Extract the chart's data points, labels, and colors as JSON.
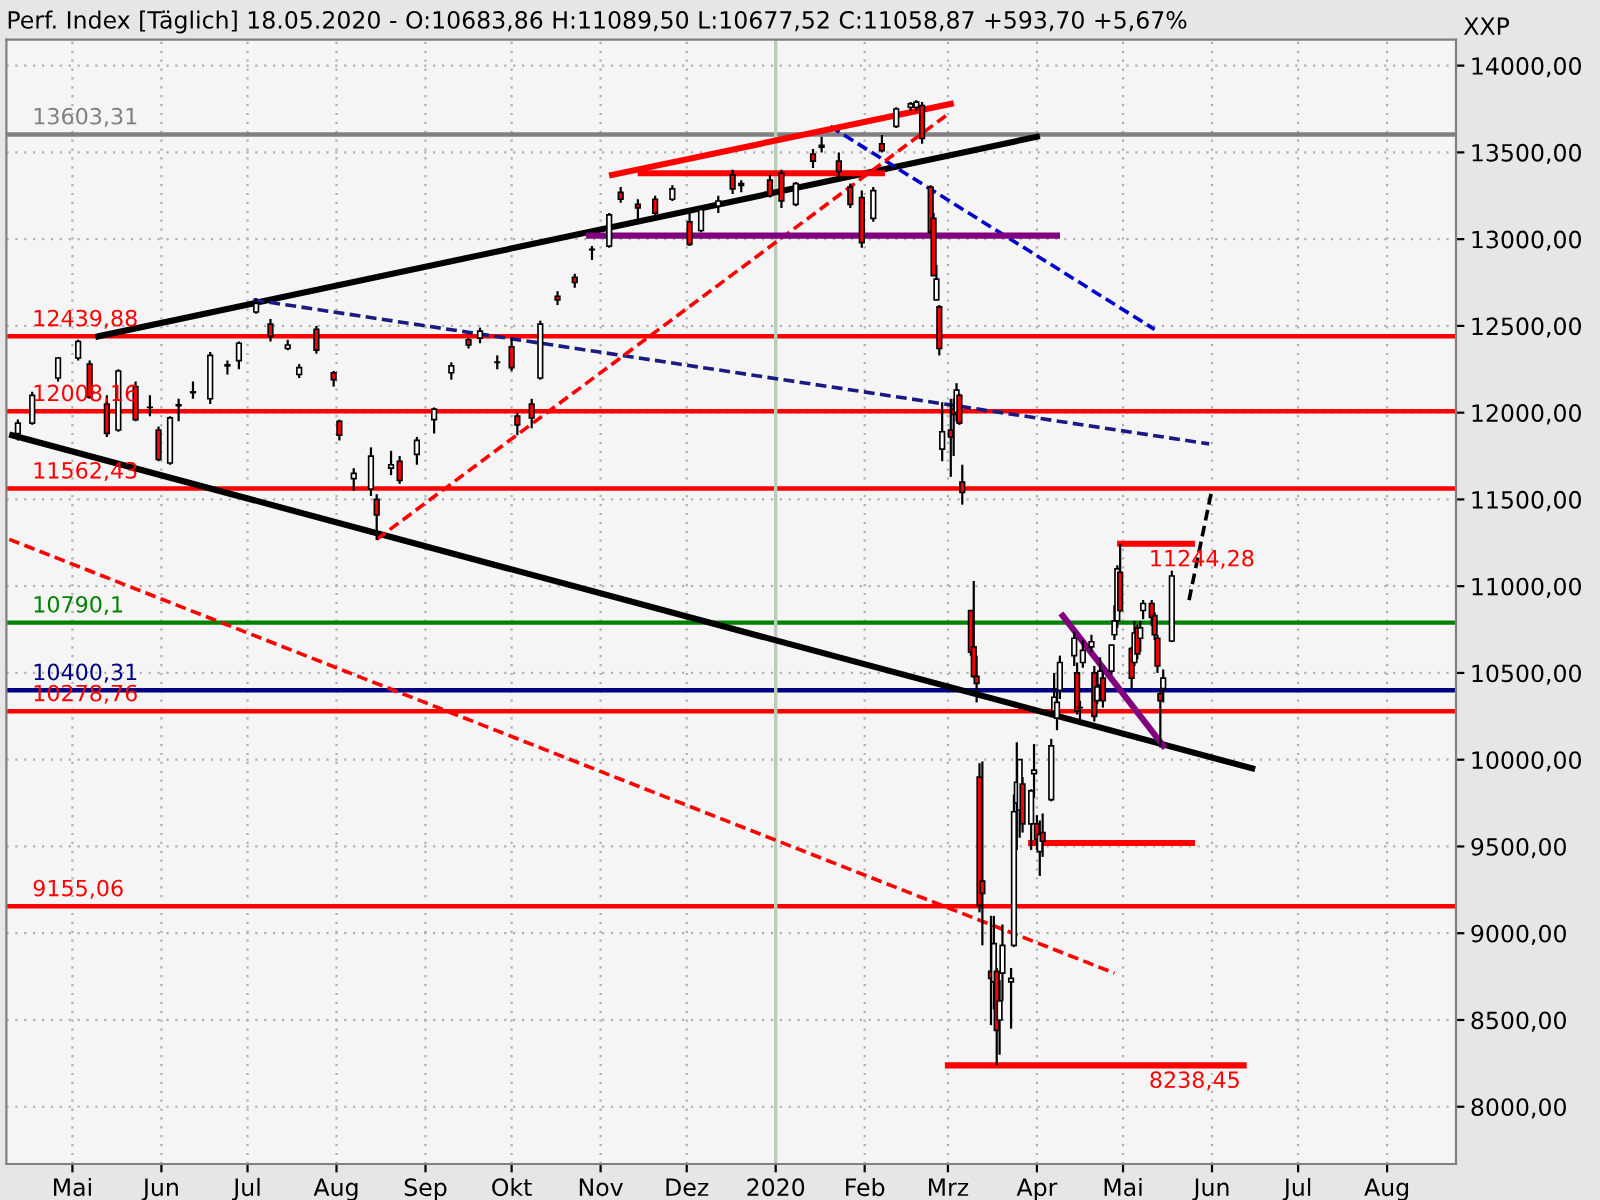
{
  "chart_data": {
    "type": "candlestick",
    "title": "Perf. Index [Täglich] 18.05.2020 - O:10683,86 H:11089,50 L:10677,52 C:11058,87 +593,70 +5,67%",
    "ylabel": "XXP",
    "x": [
      "2019-04-12",
      "2019-04-17",
      "2019-04-26",
      "2019-05-03",
      "2019-05-07",
      "2019-05-13",
      "2019-05-17",
      "2019-05-23",
      "2019-05-28",
      "2019-05-31",
      "2019-06-04",
      "2019-06-07",
      "2019-06-12",
      "2019-06-18",
      "2019-06-24",
      "2019-06-28",
      "2019-07-04",
      "2019-07-09",
      "2019-07-15",
      "2019-07-19",
      "2019-07-25",
      "2019-07-31",
      "2019-08-02",
      "2019-08-07",
      "2019-08-13",
      "2019-08-15",
      "2019-08-20",
      "2019-08-23",
      "2019-08-29",
      "2019-09-04",
      "2019-09-10",
      "2019-09-16",
      "2019-09-20",
      "2019-09-26",
      "2019-10-01",
      "2019-10-03",
      "2019-10-08",
      "2019-10-11",
      "2019-10-17",
      "2019-10-23",
      "2019-10-29",
      "2019-11-04",
      "2019-11-08",
      "2019-11-14",
      "2019-11-20",
      "2019-11-26",
      "2019-12-02",
      "2019-12-06",
      "2019-12-12",
      "2019-12-17",
      "2019-12-20",
      "2019-12-30",
      "2020-01-03",
      "2020-01-08",
      "2020-01-14",
      "2020-01-17",
      "2020-01-23",
      "2020-01-27",
      "2020-01-31",
      "2020-02-04",
      "2020-02-07",
      "2020-02-12",
      "2020-02-17",
      "2020-02-19",
      "2020-02-21",
      "2020-02-24",
      "2020-02-25",
      "2020-02-26",
      "2020-02-27",
      "2020-02-28",
      "2020-03-02",
      "2020-03-03",
      "2020-03-04",
      "2020-03-05",
      "2020-03-06",
      "2020-03-09",
      "2020-03-10",
      "2020-03-11",
      "2020-03-12",
      "2020-03-13",
      "2020-03-16",
      "2020-03-17",
      "2020-03-18",
      "2020-03-19",
      "2020-03-20",
      "2020-03-23",
      "2020-03-24",
      "2020-03-25",
      "2020-03-26",
      "2020-03-27",
      "2020-03-30",
      "2020-03-31",
      "2020-04-01",
      "2020-04-02",
      "2020-04-03",
      "2020-04-06",
      "2020-04-07",
      "2020-04-08",
      "2020-04-09",
      "2020-04-14",
      "2020-04-15",
      "2020-04-16",
      "2020-04-17",
      "2020-04-20",
      "2020-04-21",
      "2020-04-22",
      "2020-04-23",
      "2020-04-24",
      "2020-04-27",
      "2020-04-28",
      "2020-04-29",
      "2020-04-30",
      "2020-05-04",
      "2020-05-05",
      "2020-05-06",
      "2020-05-07",
      "2020-05-08",
      "2020-05-11",
      "2020-05-12",
      "2020-05-13",
      "2020-05-14",
      "2020-05-15",
      "2020-05-18"
    ],
    "ohlc": [
      [
        11880,
        11960,
        11840,
        11940
      ],
      [
        11940,
        12120,
        11930,
        12100
      ],
      [
        12200,
        12320,
        12180,
        12315
      ],
      [
        12315,
        12420,
        12300,
        12410
      ],
      [
        12280,
        12300,
        12080,
        12090
      ],
      [
        12050,
        12100,
        11860,
        11880
      ],
      [
        11900,
        12250,
        11890,
        12240
      ],
      [
        12150,
        12180,
        11950,
        11960
      ],
      [
        12030,
        12100,
        11980,
        12030
      ],
      [
        11900,
        11920,
        11720,
        11730
      ],
      [
        11710,
        11980,
        11700,
        11970
      ],
      [
        12040,
        12080,
        11950,
        12045
      ],
      [
        12120,
        12180,
        12080,
        12115
      ],
      [
        12080,
        12350,
        12050,
        12330
      ],
      [
        12270,
        12300,
        12220,
        12275
      ],
      [
        12300,
        12410,
        12250,
        12400
      ],
      [
        12580,
        12660,
        12570,
        12630
      ],
      [
        12510,
        12540,
        12410,
        12440
      ],
      [
        12370,
        12420,
        12360,
        12390
      ],
      [
        12220,
        12280,
        12200,
        12260
      ],
      [
        12480,
        12500,
        12340,
        12360
      ],
      [
        12230,
        12240,
        12150,
        12190
      ],
      [
        11950,
        11960,
        11840,
        11870
      ],
      [
        11620,
        11680,
        11550,
        11650
      ],
      [
        11560,
        11800,
        11520,
        11750
      ],
      [
        11500,
        11530,
        11266,
        11410
      ],
      [
        11680,
        11780,
        11640,
        11700
      ],
      [
        11720,
        11750,
        11590,
        11610
      ],
      [
        11760,
        11860,
        11700,
        11840
      ],
      [
        11960,
        12030,
        11880,
        12020
      ],
      [
        12230,
        12290,
        12190,
        12270
      ],
      [
        12420,
        12430,
        12370,
        12390
      ],
      [
        12430,
        12490,
        12400,
        12470
      ],
      [
        12290,
        12330,
        12250,
        12290
      ],
      [
        12380,
        12430,
        12240,
        12260
      ],
      [
        11980,
        12000,
        11870,
        11930
      ],
      [
        12050,
        12080,
        11910,
        11970
      ],
      [
        12200,
        12530,
        12190,
        12510
      ],
      [
        12670,
        12700,
        12620,
        12650
      ],
      [
        12780,
        12800,
        12720,
        12750
      ],
      [
        12940,
        12960,
        12880,
        12940
      ],
      [
        12960,
        13150,
        12950,
        13140
      ],
      [
        13270,
        13300,
        13210,
        13230
      ],
      [
        13200,
        13230,
        13100,
        13180
      ],
      [
        13230,
        13250,
        13120,
        13150
      ],
      [
        13230,
        13310,
        13220,
        13290
      ],
      [
        13100,
        13150,
        12960,
        12970
      ],
      [
        13050,
        13180,
        13040,
        13170
      ],
      [
        13190,
        13250,
        13150,
        13220
      ],
      [
        13370,
        13400,
        13260,
        13290
      ],
      [
        13310,
        13340,
        13270,
        13320
      ],
      [
        13340,
        13370,
        13240,
        13250
      ],
      [
        13380,
        13400,
        13180,
        13220
      ],
      [
        13200,
        13330,
        13190,
        13320
      ],
      [
        13490,
        13520,
        13410,
        13450
      ],
      [
        13540,
        13590,
        13500,
        13530
      ],
      [
        13450,
        13500,
        13340,
        13390
      ],
      [
        13300,
        13320,
        13180,
        13200
      ],
      [
        13240,
        13280,
        12950,
        12980
      ],
      [
        13120,
        13300,
        13100,
        13280
      ],
      [
        13550,
        13600,
        13500,
        13510
      ],
      [
        13650,
        13760,
        13640,
        13750
      ],
      [
        13760,
        13790,
        13740,
        13780
      ],
      [
        13760,
        13800,
        13740,
        13790
      ],
      [
        13770,
        13790,
        13550,
        13580
      ],
      [
        13300,
        13310,
        13030,
        13040
      ],
      [
        13120,
        13150,
        12790,
        12790
      ],
      [
        12650,
        12850,
        12650,
        12770
      ],
      [
        12610,
        12620,
        12330,
        12370
      ],
      [
        11790,
        12060,
        11720,
        11890
      ],
      [
        11900,
        12080,
        11630,
        11860
      ],
      [
        12020,
        12080,
        11750,
        11990
      ],
      [
        12000,
        12170,
        11950,
        12130
      ],
      [
        12100,
        12110,
        11930,
        11940
      ],
      [
        11600,
        11700,
        11470,
        11540
      ],
      [
        10860,
        10860,
        10600,
        10620
      ],
      [
        10650,
        11030,
        10470,
        10480
      ],
      [
        10480,
        10600,
        10330,
        10440
      ],
      [
        9900,
        9980,
        9120,
        9160
      ],
      [
        9300,
        9990,
        8930,
        9230
      ],
      [
        8780,
        9100,
        8470,
        8740
      ],
      [
        8720,
        9100,
        8560,
        8940
      ],
      [
        8780,
        8800,
        8240,
        8440
      ],
      [
        8500,
        8730,
        8300,
        8610
      ],
      [
        8770,
        9050,
        8610,
        8930
      ],
      [
        8720,
        8800,
        8450,
        8740
      ],
      [
        8930,
        9800,
        8920,
        9700
      ],
      [
        9750,
        10100,
        9480,
        9870
      ],
      [
        9710,
        10000,
        9550,
        10000
      ],
      [
        9860,
        9900,
        9580,
        9630
      ],
      [
        9630,
        9830,
        9480,
        9820
      ],
      [
        9920,
        10090,
        9780,
        9940
      ],
      [
        9630,
        9680,
        9480,
        9540
      ],
      [
        9470,
        9650,
        9330,
        9570
      ],
      [
        9580,
        9690,
        9440,
        9530
      ],
      [
        9770,
        10120,
        9760,
        10080
      ],
      [
        10280,
        10500,
        10260,
        10360
      ],
      [
        10240,
        10390,
        10170,
        10330
      ],
      [
        10400,
        10600,
        10350,
        10560
      ],
      [
        10600,
        10740,
        10540,
        10700
      ],
      [
        10500,
        10560,
        10260,
        10280
      ],
      [
        10300,
        10340,
        10230,
        10300
      ],
      [
        10560,
        10690,
        10530,
        10630
      ],
      [
        10650,
        10720,
        10620,
        10680
      ],
      [
        10500,
        10540,
        10220,
        10250
      ],
      [
        10340,
        10470,
        10320,
        10420
      ],
      [
        10430,
        10590,
        10400,
        10510
      ],
      [
        10470,
        10500,
        10300,
        10340
      ],
      [
        10510,
        10660,
        10490,
        10660
      ],
      [
        10720,
        10890,
        10690,
        10800
      ],
      [
        10800,
        11120,
        10760,
        11100
      ],
      [
        11080,
        11244,
        10850,
        10860
      ],
      [
        10640,
        10650,
        10410,
        10470
      ],
      [
        10560,
        10800,
        10540,
        10730
      ],
      [
        10760,
        10780,
        10580,
        10610
      ],
      [
        10700,
        10800,
        10620,
        10760
      ],
      [
        10860,
        10920,
        10810,
        10900
      ],
      [
        10900,
        10920,
        10770,
        10820
      ],
      [
        10830,
        10850,
        10690,
        10720
      ],
      [
        10700,
        10720,
        10500,
        10540
      ],
      [
        10380,
        10400,
        10070,
        10340
      ],
      [
        10410,
        10520,
        10330,
        10470
      ],
      [
        10683.86,
        11089.5,
        10677.52,
        11058.87
      ]
    ],
    "series": [
      {
        "type": "line",
        "color": "#000000",
        "line_style": "solid",
        "x": [
          "2019-05-10",
          "2020-04-01"
        ],
        "values": [
          12440,
          13590
        ]
      },
      {
        "type": "line",
        "color": "#000000",
        "line_style": "solid",
        "x": [
          "2019-04-10",
          "2020-06-15"
        ],
        "values": [
          11870,
          9950
        ]
      },
      {
        "type": "line",
        "color": "#1a1a80",
        "line_style": "dashed",
        "x": [
          "2019-07-03",
          "2020-05-31"
        ],
        "values": [
          12650,
          11820
        ]
      },
      {
        "type": "line",
        "color": "#0000cc",
        "line_style": "dashed",
        "x": [
          "2020-01-20",
          "2020-05-12"
        ],
        "values": [
          13650,
          12480
        ]
      },
      {
        "type": "line",
        "color": "#ff0000",
        "line_style": "dashed",
        "x": [
          "2019-04-09",
          "2020-04-28"
        ],
        "values": [
          11270,
          8770
        ]
      },
      {
        "type": "line",
        "color": "#ff0000",
        "line_style": "dashed",
        "x": [
          "2019-08-15",
          "2020-03-01"
        ],
        "values": [
          11270,
          13720
        ]
      },
      {
        "type": "line",
        "color": "#ff0000",
        "line_style": "solid",
        "x": [
          "2019-11-05",
          "2020-03-02"
        ],
        "values": [
          13370,
          13780
        ]
      },
      {
        "type": "line",
        "color": "#ff0000",
        "line_style": "solid",
        "x": [
          "2019-11-15",
          "2020-02-07"
        ],
        "values": [
          13380,
          13380
        ]
      },
      {
        "type": "line",
        "color": "#800080",
        "line_style": "solid",
        "x": [
          "2019-10-28",
          "2020-04-08"
        ],
        "values": [
          13020,
          13020
        ]
      },
      {
        "type": "line",
        "color": "#800080",
        "line_style": "solid",
        "x": [
          "2020-04-10",
          "2020-05-15"
        ],
        "values": [
          10830,
          10080
        ]
      },
      {
        "type": "line",
        "color": "#ff0000",
        "line_style": "solid",
        "x": [
          "2020-04-30",
          "2020-05-25"
        ],
        "values": [
          11244.28,
          11244.28
        ]
      },
      {
        "type": "line",
        "color": "#ff0000",
        "line_style": "solid",
        "x": [
          "2020-03-30",
          "2020-05-25"
        ],
        "values": [
          9520,
          9520
        ]
      },
      {
        "type": "line",
        "color": "#ff0000",
        "line_style": "solid",
        "x": [
          "2020-03-01",
          "2020-06-12"
        ],
        "values": [
          8238.45,
          8238.45
        ]
      },
      {
        "type": "line",
        "color": "#000000",
        "line_style": "dashed",
        "x": [
          "2020-05-24",
          "2020-06-01"
        ],
        "values": [
          10920,
          11560
        ]
      }
    ],
    "ref_lines": [
      {
        "axis": "y",
        "value": 13603.31,
        "label": "13603,31",
        "color": "#808080"
      },
      {
        "axis": "y",
        "value": 12439.88,
        "label": "12439,88",
        "color": "#ff0000"
      },
      {
        "axis": "y",
        "value": 12008.16,
        "label": "12008,16",
        "color": "#ff0000"
      },
      {
        "axis": "y",
        "value": 11562.43,
        "label": "11562,43",
        "color": "#ff0000"
      },
      {
        "axis": "y",
        "value": 10790.1,
        "label": "10790,1",
        "color": "#008000"
      },
      {
        "axis": "y",
        "value": 10400.31,
        "label": "10400,31",
        "color": "#000080"
      },
      {
        "axis": "y",
        "value": 10278.76,
        "label": "10278,76",
        "color": "#ff0000"
      },
      {
        "axis": "y",
        "value": 9155.06,
        "label": "9155,06",
        "color": "#ff0000"
      },
      {
        "axis": "x",
        "value": "2020-01-01",
        "color": "#b8ccb8"
      }
    ],
    "annotations": [
      {
        "text": "11244,28",
        "x": "2020-05-10",
        "y": 11244.28
      },
      {
        "text": "8238,45",
        "x": "2020-05-10",
        "y": 8238.45
      }
    ],
    "xlim": [
      "2019-04-08",
      "2020-08-25"
    ],
    "xticks": [
      {
        "value": "2019-05-01",
        "label": "Mai"
      },
      {
        "value": "2019-06-01",
        "label": "Jun"
      },
      {
        "value": "2019-07-01",
        "label": "Jul"
      },
      {
        "value": "2019-08-01",
        "label": "Aug"
      },
      {
        "value": "2019-09-01",
        "label": "Sep"
      },
      {
        "value": "2019-10-01",
        "label": "Okt"
      },
      {
        "value": "2019-11-01",
        "label": "Nov"
      },
      {
        "value": "2019-12-01",
        "label": "Dez"
      },
      {
        "value": "2020-01-01",
        "label": "2020"
      },
      {
        "value": "2020-02-01",
        "label": "Feb"
      },
      {
        "value": "2020-03-01",
        "label": "Mrz"
      },
      {
        "value": "2020-04-01",
        "label": "Apr"
      },
      {
        "value": "2020-05-01",
        "label": "Mai"
      },
      {
        "value": "2020-06-01",
        "label": "Jun"
      },
      {
        "value": "2020-07-01",
        "label": "Jul"
      },
      {
        "value": "2020-08-01",
        "label": "Aug"
      }
    ],
    "ylim": [
      7670,
      14150
    ],
    "yticks": [
      {
        "value": 8000,
        "label": "8000,00"
      },
      {
        "value": 8500,
        "label": "8500,00"
      },
      {
        "value": 9000,
        "label": "9000,00"
      },
      {
        "value": 9500,
        "label": "9500,00"
      },
      {
        "value": 10000,
        "label": "10000,00"
      },
      {
        "value": 10500,
        "label": "10500,00"
      },
      {
        "value": 11000,
        "label": "11000,00"
      },
      {
        "value": 11500,
        "label": "11500,00"
      },
      {
        "value": 12000,
        "label": "12000,00"
      },
      {
        "value": 12500,
        "label": "12500,00"
      },
      {
        "value": 13000,
        "label": "13000,00"
      },
      {
        "value": 13500,
        "label": "13500,00"
      },
      {
        "value": 14000,
        "label": "14000,00"
      }
    ],
    "grid": true
  }
}
